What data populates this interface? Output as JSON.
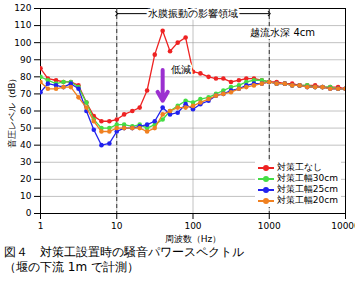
{
  "chart_data": {
    "type": "line",
    "caption": "図４　対策工設置時の騒音パワースペクトル\n（堰の下流 1m で計測）",
    "x_label": "周波数（Hz）",
    "y_label": "音圧レベル（dB）",
    "log": "x",
    "grid": true,
    "legend": "lower right",
    "xlim": [
      1,
      10000
    ],
    "xticks": [
      1,
      10,
      100,
      1000,
      10000
    ],
    "ylim": [
      0,
      120
    ],
    "yticks": [
      0,
      10,
      20,
      30,
      40,
      50,
      60,
      70,
      80,
      90,
      100,
      110,
      120
    ],
    "x": [
      1,
      1.25,
      1.6,
      2,
      2.5,
      3.15,
      4,
      5,
      6.3,
      8,
      10,
      12.5,
      16,
      20,
      25,
      31.5,
      40,
      50,
      63,
      80,
      100,
      125,
      160,
      200,
      250,
      315,
      400,
      500,
      630,
      800,
      1000,
      1250,
      1600,
      2000,
      2500,
      3150,
      4000,
      5000,
      6300,
      8000,
      10000
    ],
    "series": [
      {
        "name": "対策工なし",
        "color": "#ee2222",
        "marker": "circle",
        "values": [
          85,
          79,
          78,
          77,
          77,
          75,
          65,
          57,
          54,
          54,
          55,
          58,
          60,
          62,
          72,
          93,
          107,
          95,
          100,
          103,
          83,
          82,
          80,
          79,
          79,
          77,
          78,
          79,
          79,
          78,
          77,
          77,
          76,
          76,
          75,
          75,
          75,
          74,
          74,
          74,
          73
        ]
      },
      {
        "name": "対策工幅30cm",
        "color": "#44dd44",
        "marker": "circle",
        "values": [
          80,
          78,
          76,
          77,
          77,
          74,
          65,
          55,
          50,
          50,
          52,
          52,
          51,
          52,
          50,
          52,
          55,
          60,
          63,
          66,
          65,
          67,
          68,
          70,
          72,
          74,
          75,
          77,
          78,
          78,
          77,
          76,
          76,
          75,
          75,
          75,
          74,
          74,
          74,
          73,
          73
        ]
      },
      {
        "name": "対策工幅25cm",
        "color": "#2222ee",
        "marker": "circle",
        "values": [
          71,
          76,
          75,
          74,
          76,
          73,
          60,
          49,
          40,
          41,
          48,
          50,
          50,
          51,
          52,
          54,
          62,
          58,
          59,
          64,
          61,
          64,
          66,
          69,
          70,
          72,
          73,
          75,
          76,
          76,
          77,
          76,
          76,
          75,
          75,
          74,
          74,
          74,
          73,
          73,
          73
        ]
      },
      {
        "name": "対策工幅20cm",
        "color": "#f08020",
        "marker": "circle",
        "values": [
          77,
          73,
          73,
          74,
          74,
          68,
          62,
          54,
          48,
          48,
          50,
          50,
          50,
          50,
          48,
          50,
          58,
          60,
          62,
          62,
          63,
          65,
          67,
          69,
          70,
          71,
          73,
          74,
          75,
          76,
          77,
          76,
          76,
          75,
          75,
          74,
          74,
          74,
          73,
          73,
          73
        ]
      }
    ],
    "annotations": [
      {
        "type": "range",
        "text": "水膜振動の影響領域",
        "x": [
          10,
          1000
        ],
        "y": 117
      },
      {
        "type": "text",
        "text": "越流水深 4cm",
        "x": 1500,
        "y": 106
      },
      {
        "type": "arrow",
        "text": "低減",
        "x": 40,
        "y": [
          84,
          66
        ],
        "color": "#9b30d0"
      }
    ]
  }
}
